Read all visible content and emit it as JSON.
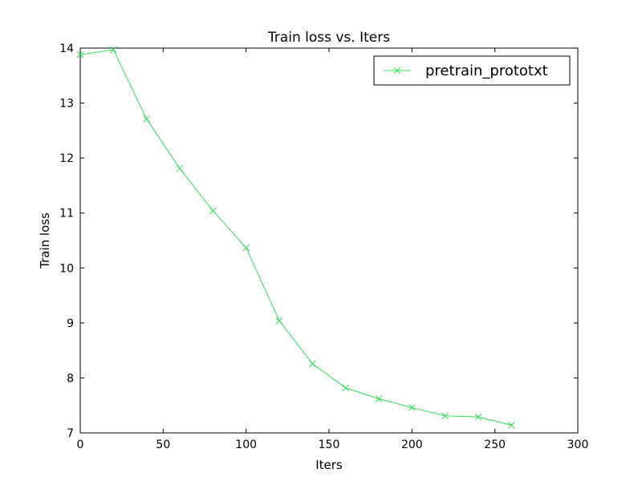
{
  "chart_data": {
    "type": "line",
    "title": "Train loss  vs. Iters",
    "xlabel": "Iters",
    "ylabel": "Train loss",
    "xlim": [
      0,
      300
    ],
    "ylim": [
      7,
      14
    ],
    "xticks": [
      0,
      50,
      100,
      150,
      200,
      250,
      300
    ],
    "yticks": [
      7,
      8,
      9,
      10,
      11,
      12,
      13,
      14
    ],
    "grid": false,
    "legend_position": "top-right",
    "series": [
      {
        "name": "pretrain_prototxt",
        "color": "#33dd55",
        "marker": "x",
        "x": [
          0,
          20,
          40,
          60,
          80,
          100,
          120,
          140,
          160,
          180,
          200,
          220,
          240,
          260
        ],
        "y": [
          13.88,
          13.97,
          12.71,
          11.81,
          11.04,
          10.37,
          9.04,
          8.26,
          7.82,
          7.62,
          7.46,
          7.31,
          7.29,
          7.14
        ]
      }
    ]
  }
}
